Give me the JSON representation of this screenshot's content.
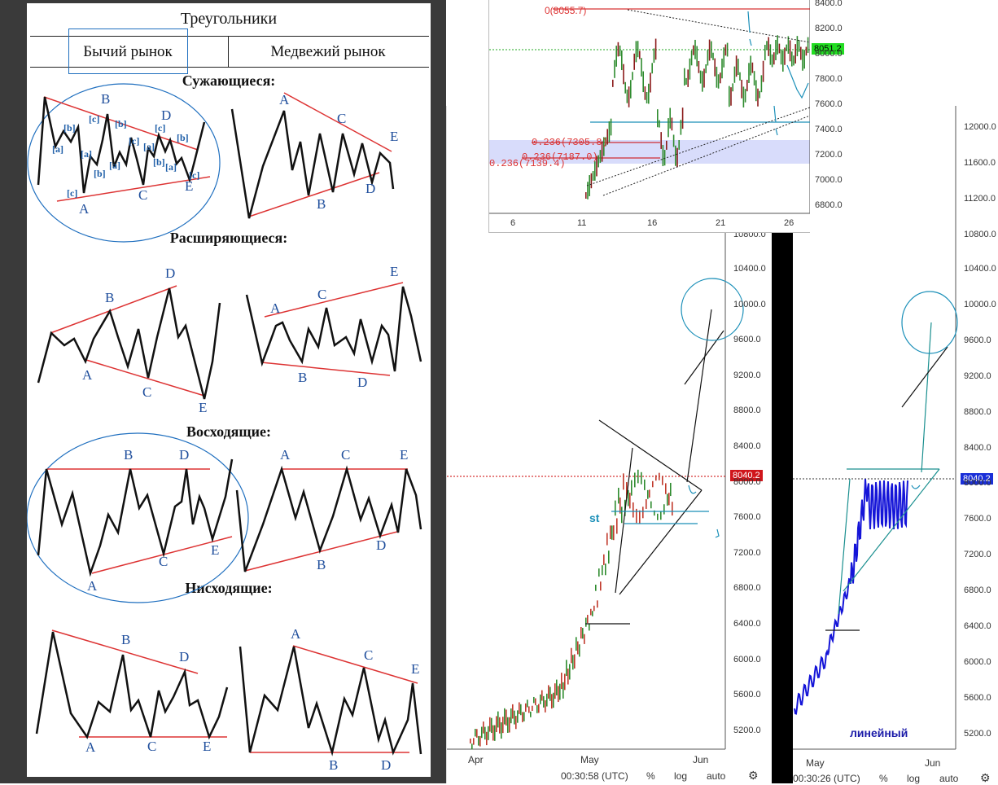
{
  "left": {
    "title": "Треугольники",
    "tab_bull": "Бычий рынок",
    "tab_bear": "Медвежий рынок",
    "sections": [
      "Сужающиеся:",
      "Расширяющиеся:",
      "Восходящие:",
      "Нисходящие:"
    ],
    "wave_labels": [
      "A",
      "B",
      "C",
      "D",
      "E"
    ],
    "sub_labels": [
      "[a]",
      "[b]",
      "[c]"
    ]
  },
  "chart_top": {
    "y_ticks": [
      "8400.0",
      "8200.0",
      "8000.0",
      "7800.0",
      "7600.0",
      "7400.0",
      "7200.0",
      "7000.0",
      "6800.0"
    ],
    "x_ticks": [
      "6",
      "11",
      "16",
      "21",
      "26"
    ],
    "price_label": "8051.2",
    "fib_labels": [
      "0.236(7305.8)",
      "0.236(7187.0)",
      "0.236(7139.4)"
    ],
    "top_label": "0(8055.7)",
    "colors": {
      "up": "#2e8b2e",
      "down": "#8b1a1a",
      "fib_band": "#d8dcfb",
      "price": "#22cc22"
    }
  },
  "chart_mid": {
    "y_ticks": [
      "10400.0",
      "10000.0",
      "9600.0",
      "9200.0",
      "8800.0",
      "8400.0",
      "8000.0",
      "7600.0",
      "7200.0",
      "6800.0",
      "6400.0",
      "6000.0",
      "5600.0",
      "5200.0"
    ],
    "x_ticks": [
      "Apr",
      "May",
      "Jun"
    ],
    "price_label": "8040.2",
    "annotation": "st",
    "toolbar": {
      "time": "00:30:58 (UTC)",
      "pct": "%",
      "log": "log",
      "auto": "auto"
    },
    "right_ticks": [
      "12000.0",
      "11600.0",
      "11200.0",
      "10800.0"
    ]
  },
  "chart_right": {
    "y_ticks": [
      "10400.0",
      "10000.0",
      "9600.0",
      "9200.0",
      "8800.0",
      "8400.0",
      "8000.0",
      "7600.0",
      "7200.0",
      "6800.0",
      "6400.0",
      "6000.0",
      "5600.0",
      "5200.0"
    ],
    "x_ticks": [
      "May",
      "Jun"
    ],
    "price_label": "8040.2",
    "annotation": "линейный",
    "toolbar": {
      "time": "00:30:26 (UTC)",
      "pct": "%",
      "log": "log",
      "auto": "auto"
    }
  }
}
